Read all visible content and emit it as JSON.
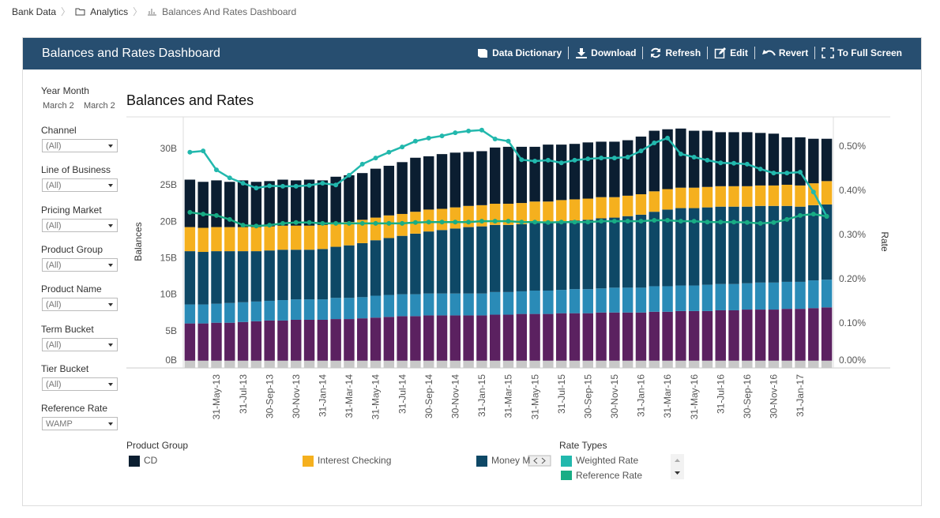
{
  "breadcrumb": [
    "Bank Data",
    "Analytics",
    "Balances And Rates Dashboard"
  ],
  "header": {
    "title": "Balances and Rates Dashboard",
    "actions": [
      "Data Dictionary",
      "Download",
      "Refresh",
      "Edit",
      "Revert",
      "To Full Screen"
    ]
  },
  "filters": {
    "year_month": {
      "label": "Year Month",
      "values": [
        "March 2",
        "March 2"
      ]
    },
    "dropdowns": [
      {
        "label": "Channel",
        "value": "(All)"
      },
      {
        "label": "Line of Business",
        "value": "(All)"
      },
      {
        "label": "Pricing Market",
        "value": "(All)"
      },
      {
        "label": "Product Group",
        "value": "(All)"
      },
      {
        "label": "Product Name",
        "value": "(All)"
      },
      {
        "label": "Term Bucket",
        "value": "(All)"
      },
      {
        "label": "Tier Bucket",
        "value": "(All)"
      },
      {
        "label": "Reference Rate",
        "value": "WAMP"
      }
    ]
  },
  "chart_data": {
    "type": "bar",
    "stacked": true,
    "title": "Balances and Rates",
    "y_label": "Balances",
    "y2_label": "Rate",
    "legend_titles": {
      "bars": "Product Group",
      "lines": "Rate Types"
    },
    "categories": [
      null,
      null,
      "31-May-13",
      null,
      "31-Jul-13",
      null,
      "30-Sep-13",
      null,
      "30-Nov-13",
      null,
      "31-Jan-14",
      null,
      "31-Mar-14",
      null,
      "31-May-14",
      null,
      "31-Jul-14",
      null,
      "30-Sep-14",
      null,
      "30-Nov-14",
      null,
      "31-Jan-15",
      null,
      "31-Mar-15",
      null,
      "31-May-15",
      null,
      "31-Jul-15",
      null,
      "30-Sep-15",
      null,
      "30-Nov-15",
      null,
      "31-Jan-16",
      null,
      "31-Mar-16",
      null,
      "31-May-16",
      null,
      "31-Jul-16",
      null,
      "30-Sep-16",
      null,
      "30-Nov-16",
      null,
      "31-Jan-17",
      null,
      null
    ],
    "ylim": [
      0,
      34.4
    ],
    "yticks": [
      {
        "value": 0,
        "label": "0B"
      },
      {
        "value": 5,
        "label": "5B"
      },
      {
        "value": 10,
        "label": "10B"
      },
      {
        "value": 15,
        "label": "15B"
      },
      {
        "value": 20,
        "label": "20B"
      },
      {
        "value": 25,
        "label": "25B"
      },
      {
        "value": 30,
        "label": "30B"
      }
    ],
    "y2lim": [
      0,
      0.568
    ],
    "y2ticks": [
      {
        "value": 0,
        "label": "0.00%"
      },
      {
        "value": 0.1,
        "label": "0.10%"
      },
      {
        "value": 0.2,
        "label": "0.20%"
      },
      {
        "value": 0.3,
        "label": "0.30%"
      },
      {
        "value": 0.4,
        "label": "0.40%"
      },
      {
        "value": 0.5,
        "label": "0.50%"
      }
    ],
    "grid": false,
    "series": [
      {
        "color": "#c8c8c8",
        "values": [
          1,
          1,
          1,
          1,
          1,
          1,
          1,
          1,
          1,
          1,
          1,
          1,
          1,
          1,
          1,
          1,
          1,
          1,
          1,
          1,
          1,
          1,
          1,
          1,
          1,
          1,
          1,
          1,
          1,
          1,
          1,
          1,
          1,
          1,
          1,
          1,
          1,
          1,
          1,
          1,
          1,
          1,
          1,
          1,
          1,
          1,
          1,
          1,
          1
        ]
      },
      {
        "color": "#5b2160",
        "values": [
          5.1,
          5.1,
          5.2,
          5.2,
          5.3,
          5.4,
          5.5,
          5.5,
          5.6,
          5.6,
          5.6,
          5.7,
          5.7,
          5.8,
          5.9,
          6.0,
          6.1,
          6.1,
          6.2,
          6.2,
          6.2,
          6.2,
          6.2,
          6.3,
          6.3,
          6.4,
          6.4,
          6.4,
          6.5,
          6.5,
          6.5,
          6.6,
          6.6,
          6.6,
          6.6,
          6.7,
          6.7,
          6.8,
          6.8,
          6.8,
          6.9,
          6.9,
          7.0,
          7.0,
          7.0,
          7.1,
          7.1,
          7.2,
          7.3
        ]
      },
      {
        "color": "#2a8bb7",
        "values": [
          2.6,
          2.6,
          2.6,
          2.7,
          2.7,
          2.7,
          2.7,
          2.8,
          2.8,
          2.8,
          2.8,
          2.9,
          2.9,
          2.9,
          3.0,
          3.0,
          3.0,
          3.0,
          3.0,
          3.0,
          3.0,
          3.0,
          3.0,
          3.1,
          3.1,
          3.1,
          3.2,
          3.2,
          3.2,
          3.3,
          3.3,
          3.3,
          3.4,
          3.4,
          3.4,
          3.5,
          3.5,
          3.5,
          3.5,
          3.6,
          3.6,
          3.6,
          3.6,
          3.7,
          3.7,
          3.7,
          3.7,
          3.8,
          3.8
        ]
      },
      {
        "name": "Money M",
        "color": "#0e4866",
        "values": [
          7.3,
          7.2,
          7.2,
          7.1,
          7.0,
          6.9,
          6.9,
          6.9,
          6.8,
          6.8,
          6.9,
          7.0,
          7.2,
          7.4,
          7.6,
          7.8,
          8.0,
          8.3,
          8.5,
          8.7,
          8.9,
          9.1,
          9.2,
          9.2,
          9.2,
          9.2,
          9.3,
          9.3,
          9.4,
          9.4,
          9.5,
          9.6,
          9.6,
          9.8,
          10.0,
          10.2,
          10.5,
          10.6,
          10.6,
          10.6,
          10.6,
          10.6,
          10.5,
          10.5,
          10.5,
          10.4,
          10.3,
          10.3,
          10.3
        ]
      },
      {
        "name": "Interest Checking",
        "color": "#f5b01e",
        "values": [
          3.3,
          3.3,
          3.3,
          3.3,
          3.3,
          3.3,
          3.3,
          3.3,
          3.3,
          3.3,
          3.3,
          3.2,
          3.2,
          3.2,
          3.1,
          3.1,
          3.0,
          3.0,
          3.0,
          2.9,
          2.9,
          2.9,
          2.9,
          2.9,
          2.9,
          2.9,
          2.9,
          2.9,
          2.9,
          2.9,
          2.9,
          2.9,
          2.8,
          2.8,
          2.8,
          2.8,
          2.8,
          2.8,
          2.8,
          2.8,
          2.8,
          2.8,
          2.8,
          2.8,
          2.8,
          2.9,
          2.9,
          3.0,
          3.2
        ]
      },
      {
        "name": "CD",
        "color": "#0b1e31",
        "values": [
          6.5,
          6.3,
          6.4,
          6.2,
          6.4,
          6.2,
          6.2,
          6.3,
          6.2,
          6.3,
          6.1,
          6.4,
          6.4,
          6.4,
          6.7,
          6.8,
          7.1,
          7.4,
          7.3,
          7.5,
          7.5,
          7.4,
          7.4,
          7.7,
          7.8,
          7.7,
          7.5,
          7.8,
          7.6,
          7.6,
          7.7,
          7.6,
          7.6,
          7.6,
          7.9,
          8.3,
          8.2,
          8.1,
          7.8,
          7.7,
          7.4,
          7.4,
          7.4,
          7.2,
          7.1,
          6.5,
          6.6,
          6.1,
          5.8
        ]
      },
      {
        "name": "Weighted Rate",
        "type": "line",
        "axis": "y2",
        "color": "#22b8ad",
        "values": [
          0.488,
          0.491,
          0.448,
          0.43,
          0.418,
          0.407,
          0.412,
          0.411,
          0.411,
          0.413,
          0.418,
          0.414,
          0.436,
          0.461,
          0.475,
          0.488,
          0.5,
          0.513,
          0.52,
          0.525,
          0.532,
          0.536,
          0.538,
          0.518,
          0.513,
          0.471,
          0.468,
          0.47,
          0.464,
          0.47,
          0.473,
          0.475,
          0.475,
          0.477,
          0.491,
          0.509,
          0.52,
          0.484,
          0.477,
          0.47,
          0.464,
          0.463,
          0.461,
          0.45,
          0.441,
          0.441,
          0.443,
          0.398,
          0.343
        ]
      },
      {
        "name": "Reference Rate",
        "type": "line",
        "axis": "y2",
        "color": "#19ad85",
        "values": [
          0.352,
          0.348,
          0.345,
          0.336,
          0.323,
          0.321,
          0.323,
          0.327,
          0.329,
          0.329,
          0.327,
          0.327,
          0.327,
          0.327,
          0.327,
          0.327,
          0.327,
          0.329,
          0.33,
          0.33,
          0.33,
          0.33,
          0.332,
          0.332,
          0.332,
          0.33,
          0.33,
          0.329,
          0.33,
          0.33,
          0.33,
          0.332,
          0.332,
          0.332,
          0.332,
          0.334,
          0.334,
          0.332,
          0.332,
          0.33,
          0.33,
          0.33,
          0.329,
          0.327,
          0.329,
          0.336,
          0.345,
          0.348,
          0.343
        ]
      }
    ]
  }
}
